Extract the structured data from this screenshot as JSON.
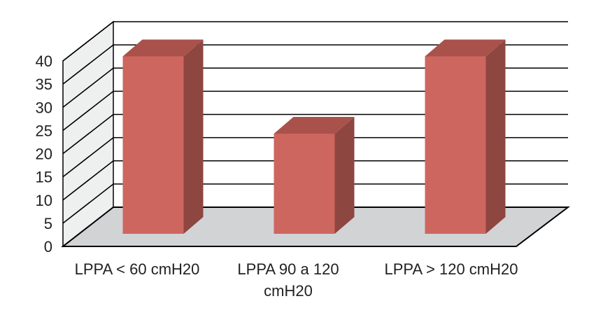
{
  "chart_data": {
    "type": "bar",
    "style": "3d",
    "categories": [
      [
        "LPPA < 60 cmH20"
      ],
      [
        "LPPA 90 a 120",
        "cmH20"
      ],
      [
        "LPPA > 120 cmH20"
      ]
    ],
    "values": [
      39,
      22,
      39
    ],
    "ylim": [
      0,
      40
    ],
    "yticks": [
      0,
      5,
      10,
      15,
      20,
      25,
      30,
      35,
      40
    ],
    "grid": true,
    "legend": "none",
    "colors": {
      "bar_front": "#cd665f",
      "bar_side": "#8e4640",
      "bar_top": "#a9524b",
      "floor": "#d2d3d5",
      "wall": "#eef0ef",
      "grid": "#000000",
      "text": "#231f20"
    }
  }
}
